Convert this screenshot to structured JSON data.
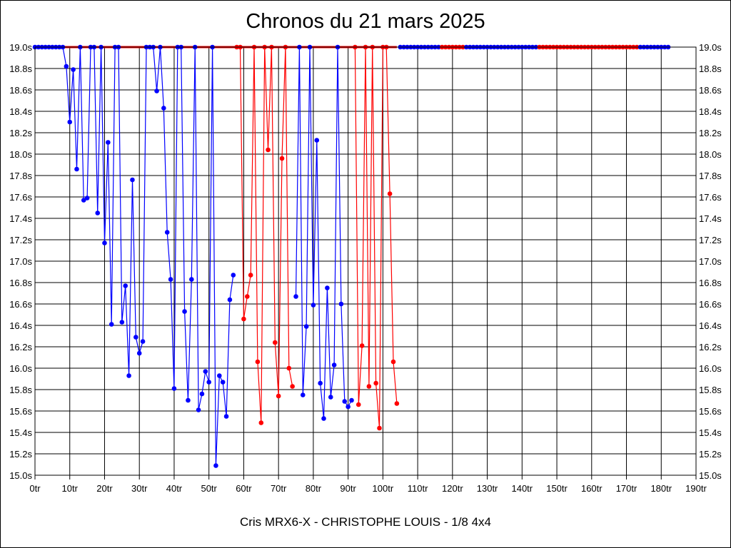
{
  "chart_data": {
    "type": "line",
    "title": "Chronos du 21 mars 2025",
    "subtitle": "Cris MRX6-X - CHRISTOPHE LOUIS - 1/8 4x4",
    "xlabel": "",
    "ylabel": "",
    "xlim": [
      0,
      190
    ],
    "ylim": [
      15.0,
      19.0
    ],
    "x_ticks": [
      "0tr",
      "10tr",
      "20tr",
      "30tr",
      "40tr",
      "50tr",
      "60tr",
      "70tr",
      "80tr",
      "90tr",
      "100tr",
      "110tr",
      "120tr",
      "130tr",
      "140tr",
      "150tr",
      "160tr",
      "170tr",
      "180tr",
      "190tr"
    ],
    "y_ticks": [
      "19.0s",
      "18.8s",
      "18.6s",
      "18.4s",
      "18.2s",
      "18.0s",
      "17.8s",
      "17.6s",
      "17.4s",
      "17.2s",
      "17.0s",
      "16.8s",
      "16.6s",
      "16.4s",
      "16.2s",
      "16.0s",
      "15.8s",
      "15.6s",
      "15.4s",
      "15.2s",
      "15.0s"
    ],
    "grid": true,
    "colors": {
      "blue": "#0000ff",
      "red": "#ff0000"
    },
    "series": [
      {
        "name": "segment-1",
        "color": "blue",
        "start_lap": 0,
        "values": [
          19,
          19,
          19,
          19,
          19,
          19,
          19,
          19,
          19,
          18.82,
          18.3,
          18.79,
          17.86,
          19,
          17.57,
          17.59,
          19,
          19,
          17.45,
          19,
          17.17,
          18.11,
          16.41,
          19,
          19,
          16.43,
          16.77,
          15.93,
          17.76,
          16.29,
          16.14,
          16.25,
          19,
          19,
          19,
          18.59,
          19,
          18.43,
          17.27,
          16.83,
          15.81,
          19,
          19,
          16.53,
          15.7,
          16.83,
          19,
          15.61,
          15.76,
          15.97,
          15.87,
          19,
          15.09,
          15.93,
          15.87,
          15.55,
          16.64,
          16.87
        ]
      },
      {
        "name": "segment-2",
        "color": "red",
        "start_lap": 58,
        "values": [
          19,
          19,
          16.46,
          16.67,
          16.87,
          19,
          16.06,
          15.49,
          19,
          18.04,
          19,
          16.24,
          15.74,
          17.96,
          19,
          16.0,
          15.83
        ]
      },
      {
        "name": "segment-3",
        "color": "blue",
        "start_lap": 75,
        "values": [
          16.67,
          19,
          15.75,
          16.39,
          19,
          16.59,
          18.13,
          15.86,
          15.53,
          16.75,
          15.73,
          16.03,
          19,
          16.6,
          15.69,
          15.64,
          15.7
        ]
      },
      {
        "name": "segment-4",
        "color": "red",
        "start_lap": 92,
        "values": [
          19,
          15.66,
          16.21,
          19,
          15.83,
          19,
          15.86,
          15.44,
          19,
          19,
          17.63,
          16.06,
          15.67
        ]
      },
      {
        "name": "segment-5",
        "color": "blue",
        "start_lap": 105,
        "values": [
          19,
          19,
          19,
          19,
          19,
          19,
          19,
          19,
          19,
          19,
          19,
          19
        ]
      },
      {
        "name": "segment-6",
        "color": "red",
        "start_lap": 117,
        "values": [
          19,
          19,
          19,
          19,
          19,
          19,
          19
        ]
      },
      {
        "name": "segment-7",
        "color": "blue",
        "start_lap": 124,
        "values": [
          19,
          19,
          19,
          19,
          19,
          19,
          19,
          19,
          19,
          19,
          19,
          19,
          19,
          19,
          19,
          19,
          19,
          19,
          19,
          19,
          19
        ]
      },
      {
        "name": "segment-8",
        "color": "red",
        "start_lap": 145,
        "values": [
          19,
          19,
          19,
          19,
          19,
          19,
          19,
          19,
          19,
          19,
          19,
          19,
          19,
          19,
          19,
          19,
          19,
          19,
          19,
          19,
          19,
          19,
          19,
          19,
          19,
          19,
          19,
          19,
          19
        ]
      },
      {
        "name": "segment-9",
        "color": "blue",
        "start_lap": 174,
        "values": [
          19,
          19,
          19,
          19,
          19,
          19,
          19,
          19,
          19
        ]
      }
    ],
    "reference_line": {
      "color": "red",
      "value": 19.0,
      "from_lap": 8,
      "to_lap": 104
    }
  }
}
